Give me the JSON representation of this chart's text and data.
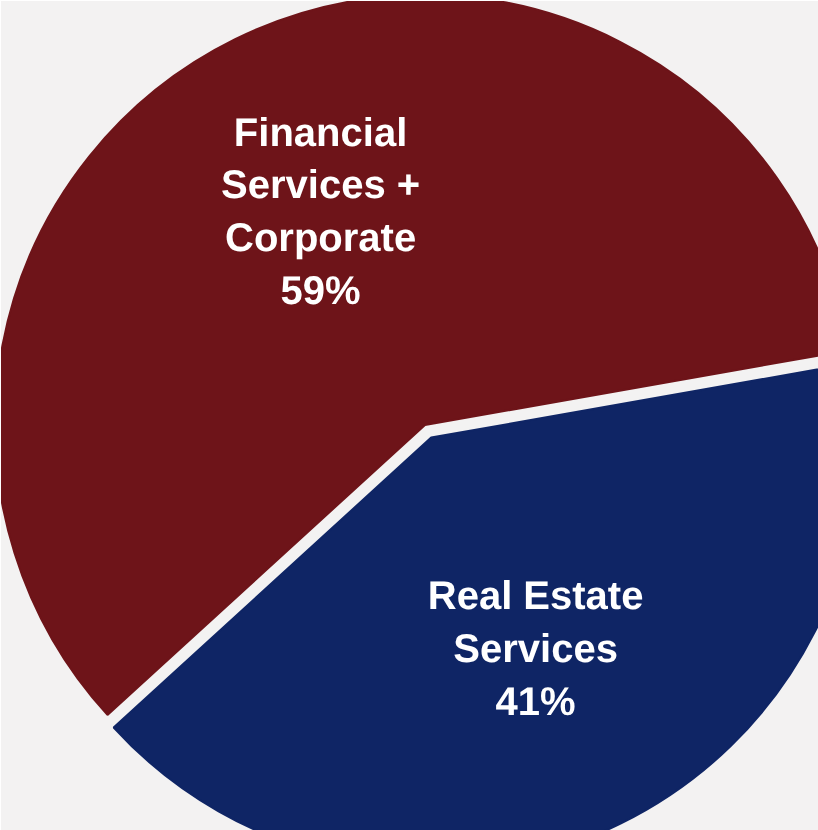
{
  "chart_data": {
    "type": "pie",
    "categories": [
      "Financial Services + Corporate",
      "Real Estate Services"
    ],
    "values": [
      59,
      41
    ],
    "colors": [
      "#6e1419",
      "#0f2565"
    ],
    "value_labels": [
      "59%",
      "41%"
    ]
  }
}
